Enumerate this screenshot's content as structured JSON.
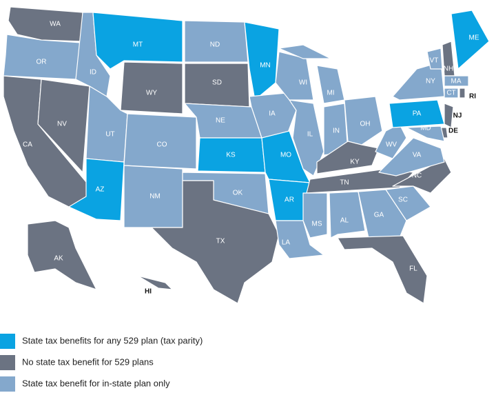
{
  "legend": [
    {
      "label": "State tax benefits for any 529 plan (tax parity)",
      "color": "#0aa3e2"
    },
    {
      "label": "No state tax benefit for 529 plans",
      "color": "#6b7382"
    },
    {
      "label": "State tax benefit for in-state plan only",
      "color": "#84a8cc"
    }
  ],
  "states": [
    {
      "label": "WA",
      "category": 1
    },
    {
      "label": "OR",
      "category": 2
    },
    {
      "label": "CA",
      "category": 1
    },
    {
      "label": "NV",
      "category": 1
    },
    {
      "label": "ID",
      "category": 2
    },
    {
      "label": "MT",
      "category": 0
    },
    {
      "label": "WY",
      "category": 1
    },
    {
      "label": "UT",
      "category": 2
    },
    {
      "label": "CO",
      "category": 2
    },
    {
      "label": "AZ",
      "category": 0
    },
    {
      "label": "NM",
      "category": 2
    },
    {
      "label": "ND",
      "category": 2
    },
    {
      "label": "SD",
      "category": 1
    },
    {
      "label": "NE",
      "category": 2
    },
    {
      "label": "KS",
      "category": 0
    },
    {
      "label": "OK",
      "category": 2
    },
    {
      "label": "TX",
      "category": 1
    },
    {
      "label": "MN",
      "category": 0
    },
    {
      "label": "IA",
      "category": 2
    },
    {
      "label": "MO",
      "category": 0
    },
    {
      "label": "AR",
      "category": 0
    },
    {
      "label": "LA",
      "category": 2
    },
    {
      "label": "WI",
      "category": 2
    },
    {
      "label": "MI",
      "category": 2
    },
    {
      "label": "IL",
      "category": 2
    },
    {
      "label": "IN",
      "category": 2
    },
    {
      "label": "OH",
      "category": 2
    },
    {
      "label": "KY",
      "category": 1
    },
    {
      "label": "TN",
      "category": 1
    },
    {
      "label": "MS",
      "category": 2
    },
    {
      "label": "AL",
      "category": 2
    },
    {
      "label": "GA",
      "category": 2
    },
    {
      "label": "FL",
      "category": 1
    },
    {
      "label": "SC",
      "category": 2
    },
    {
      "label": "NC",
      "category": 1
    },
    {
      "label": "VA",
      "category": 2
    },
    {
      "label": "WV",
      "category": 2
    },
    {
      "label": "PA",
      "category": 0
    },
    {
      "label": "NY",
      "category": 2
    },
    {
      "label": "VT",
      "category": 2
    },
    {
      "label": "NH",
      "category": 1
    },
    {
      "label": "ME",
      "category": 0
    },
    {
      "label": "MA",
      "category": 2
    },
    {
      "label": "CT",
      "category": 2
    },
    {
      "label": "RI",
      "category": 1
    },
    {
      "label": "NJ",
      "category": 1
    },
    {
      "label": "DE",
      "category": 1
    },
    {
      "label": "MD",
      "category": 2
    },
    {
      "label": "AK",
      "category": 1
    },
    {
      "label": "HI",
      "category": 1
    }
  ]
}
